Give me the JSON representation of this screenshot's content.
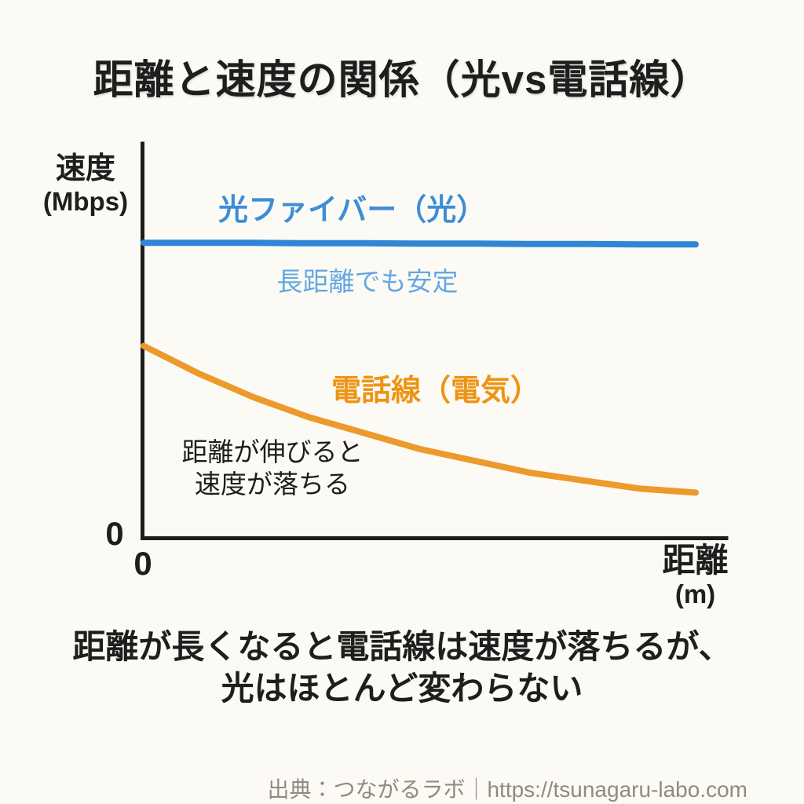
{
  "page": {
    "background": "#FCFAF4",
    "title": "距離と速度の関係（光vs電話線）",
    "caption_line1": "距離が長くなると電話線は速度が落ちるが、",
    "caption_line2": "光はほとんど変わらない",
    "source": "出典：つながるラボ｜https://tsunagaru-labo.com"
  },
  "chart_data": {
    "type": "line",
    "title": "距離と速度の関係（光vs電話線）",
    "xlabel": "距離",
    "xlabel_unit": "(m)",
    "ylabel": "速度",
    "ylabel_unit": "(Mbps)",
    "x_origin_tick": "0",
    "y_origin_tick": "0",
    "xlim": [
      0,
      100
    ],
    "ylim": [
      0,
      1
    ],
    "grid": false,
    "legend_position": "inline-labels",
    "axis_color": "#1C1C1C",
    "x": [
      0,
      10,
      20,
      30,
      40,
      50,
      60,
      70,
      80,
      90,
      100
    ],
    "series": [
      {
        "name": "光ファイバー（光）",
        "annotation": "長距離でも安定",
        "color": "#2F86D5",
        "label_color": "#3E8DD6",
        "annotation_color": "#64A7E0",
        "values": [
          0.75,
          0.75,
          0.75,
          0.749,
          0.749,
          0.748,
          0.748,
          0.747,
          0.747,
          0.746,
          0.746
        ]
      },
      {
        "name": "電話線（電気）",
        "annotation_line1": "距離が伸びると",
        "annotation_line2": "速度が落ちる",
        "color": "#EC9A2B",
        "label_color": "#ED9415",
        "annotation_color": "#F0A93F",
        "values": [
          0.49,
          0.42,
          0.36,
          0.31,
          0.27,
          0.23,
          0.2,
          0.17,
          0.15,
          0.13,
          0.12
        ]
      }
    ]
  }
}
